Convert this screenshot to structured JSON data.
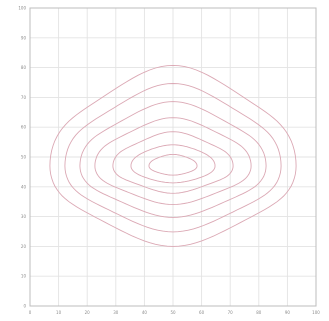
{
  "chart_data": {
    "type": "contour",
    "title": "",
    "xlabel": "",
    "ylabel": "",
    "grid": true,
    "xlim": [
      0,
      100
    ],
    "ylim": [
      0,
      100
    ],
    "x_ticks": [
      "0",
      "10",
      "20",
      "30",
      "40",
      "50",
      "60",
      "70",
      "80",
      "90",
      "100"
    ],
    "y_ticks": [
      "0",
      "10",
      "20",
      "30",
      "40",
      "50",
      "60",
      "70",
      "80",
      "90",
      "100"
    ],
    "contour_color": "#dba8b4",
    "center": [
      50,
      47
    ],
    "levels": [
      {
        "rx": 41,
        "ry": 25
      },
      {
        "rx": 36,
        "ry": 20.5
      },
      {
        "rx": 31,
        "ry": 16
      },
      {
        "rx": 26,
        "ry": 12
      },
      {
        "rx": 20,
        "ry": 8.5
      },
      {
        "rx": 14,
        "ry": 5.5
      },
      {
        "rx": 8,
        "ry": 3
      }
    ]
  }
}
